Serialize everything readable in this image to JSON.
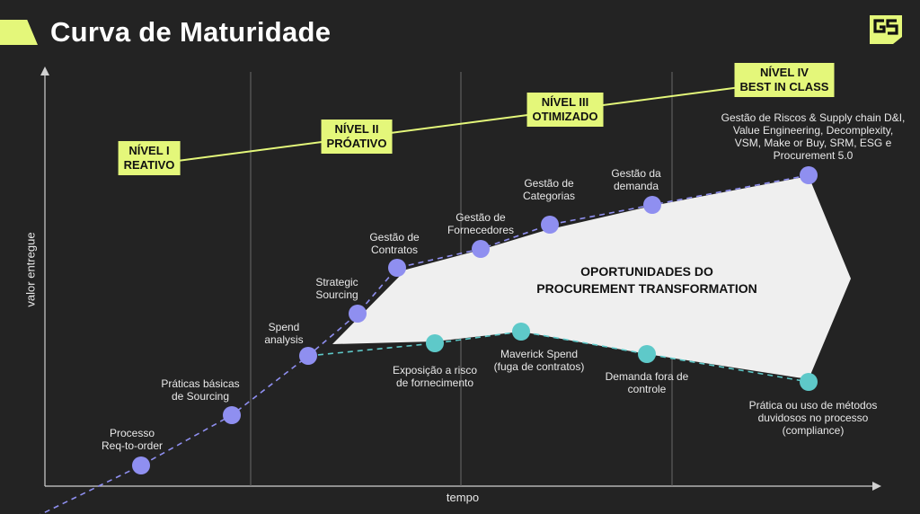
{
  "header": {
    "title": "Curva de Maturidade",
    "logo_icon": "gs-logo-icon",
    "accent_color": "#e4f77a"
  },
  "axes": {
    "x_label": "tempo",
    "y_label": "valor entregue"
  },
  "levels": [
    {
      "line1": "NÍVEL I",
      "line2": "REATIVO"
    },
    {
      "line1": "NÍVEL II",
      "line2": "PRÓATIVO"
    },
    {
      "line1": "NÍVEL III",
      "line2": "OTIMIZADO"
    },
    {
      "line1": "NÍVEL IV",
      "line2": "BEST IN CLASS"
    }
  ],
  "maturity_path": [
    {
      "label": [
        "Processo",
        "Req-to-order"
      ]
    },
    {
      "label": [
        "Práticas básicas",
        "de Sourcing"
      ]
    },
    {
      "label": [
        "Spend",
        "analysis"
      ]
    },
    {
      "label": [
        "Strategic",
        "Sourcing"
      ]
    },
    {
      "label": [
        "Gestão de",
        "Contratos"
      ]
    },
    {
      "label": [
        "Gestão de",
        "Fornecedores"
      ]
    },
    {
      "label": [
        "Gestão de",
        "Categorias"
      ]
    },
    {
      "label": [
        "Gestão da",
        "demanda"
      ]
    },
    {
      "label": [
        "Gestão de Riscos & Supply chain D&I,",
        "Value Engineering, Decomplexity,",
        "VSM, Make or Buy, SRM, ESG e",
        "Procurement 5.0"
      ]
    }
  ],
  "risk_path": [
    {
      "label": [
        "Exposição a risco",
        "de fornecimento"
      ]
    },
    {
      "label": [
        "Maverick Spend",
        "(fuga de contratos)"
      ]
    },
    {
      "label": [
        "Demanda fora de",
        "controle"
      ]
    },
    {
      "label": [
        "Prática ou uso de métodos",
        "duvidosos no processo",
        "(compliance)"
      ]
    }
  ],
  "opportunity": {
    "line1": "OPORTUNIDADES DO",
    "line2": "PROCUREMENT TRANSFORMATION"
  },
  "colors": {
    "background": "#232323",
    "maturity_dot": "#8f8ff0",
    "risk_dot": "#5ec9c9",
    "region": "#efefef",
    "level_line": "#e4f77a"
  }
}
